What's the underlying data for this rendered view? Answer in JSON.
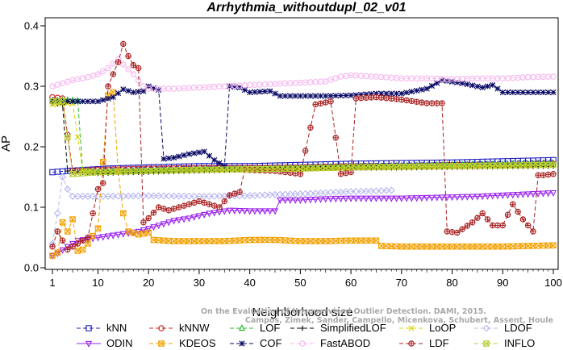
{
  "chart_data": {
    "type": "line",
    "title": "Arrhythmia_withoutdupl_02_v01",
    "xlabel": "Neighborhood size",
    "ylabel": "AP",
    "xlim": [
      1,
      100
    ],
    "ylim": [
      0,
      0.4
    ],
    "xticks": [
      1,
      10,
      20,
      30,
      40,
      50,
      60,
      70,
      80,
      90,
      100
    ],
    "yticks": [
      0.0,
      0.1,
      0.2,
      0.3,
      0.4
    ],
    "grid": false,
    "legend_position": "bottom",
    "watermark_lines": [
      "Campos, Zimek, Sander, Campello, Micenkova, Schubert, Assent, Houle",
      "On the Evaluation of Unsupervised Outlier Detection. DAMI, 2015."
    ],
    "series": [
      {
        "name": "kNN",
        "color": "#1f1fbf",
        "marker": "square",
        "dash": "5,3",
        "points": [
          [
            1,
            0.158
          ],
          [
            4,
            0.16
          ],
          [
            8,
            0.162
          ],
          [
            12,
            0.164
          ],
          [
            20,
            0.166
          ],
          [
            30,
            0.168
          ],
          [
            40,
            0.168
          ],
          [
            50,
            0.17
          ],
          [
            60,
            0.172
          ],
          [
            70,
            0.173
          ],
          [
            80,
            0.174
          ],
          [
            90,
            0.176
          ],
          [
            100,
            0.178
          ]
        ]
      },
      {
        "name": "kNNW",
        "color": "#cc2020",
        "marker": "circle",
        "dash": "5,3",
        "points": [
          [
            1,
            0.282
          ],
          [
            3,
            0.28
          ],
          [
            5,
            0.16
          ],
          [
            10,
            0.162
          ],
          [
            20,
            0.164
          ],
          [
            30,
            0.165
          ],
          [
            40,
            0.165
          ],
          [
            50,
            0.166
          ],
          [
            60,
            0.168
          ],
          [
            70,
            0.168
          ],
          [
            80,
            0.17
          ],
          [
            90,
            0.17
          ],
          [
            100,
            0.172
          ]
        ]
      },
      {
        "name": "LOF",
        "color": "#22bb22",
        "marker": "triangle-up",
        "dash": "5,3",
        "points": [
          [
            1,
            0.276
          ],
          [
            4,
            0.277
          ],
          [
            6,
            0.276
          ],
          [
            7,
            0.16
          ],
          [
            10,
            0.158
          ],
          [
            20,
            0.16
          ],
          [
            30,
            0.162
          ],
          [
            40,
            0.163
          ],
          [
            50,
            0.165
          ],
          [
            60,
            0.167
          ],
          [
            70,
            0.168
          ],
          [
            80,
            0.17
          ],
          [
            90,
            0.171
          ],
          [
            100,
            0.172
          ]
        ]
      },
      {
        "name": "SimplifiedLOF",
        "color": "#000000",
        "marker": "plus",
        "dash": "5,3",
        "points": [
          [
            1,
            0.272
          ],
          [
            3,
            0.27
          ],
          [
            4,
            0.16
          ],
          [
            10,
            0.156
          ],
          [
            20,
            0.158
          ],
          [
            30,
            0.16
          ],
          [
            40,
            0.162
          ],
          [
            50,
            0.164
          ],
          [
            60,
            0.165
          ],
          [
            70,
            0.165
          ],
          [
            80,
            0.166
          ],
          [
            90,
            0.167
          ],
          [
            100,
            0.168
          ]
        ]
      },
      {
        "name": "LoOP",
        "color": "#d4d400",
        "marker": "cross",
        "dash": "5,3",
        "points": [
          [
            1,
            0.27
          ],
          [
            5,
            0.272
          ],
          [
            7,
            0.16
          ],
          [
            10,
            0.158
          ],
          [
            20,
            0.16
          ],
          [
            30,
            0.161
          ],
          [
            40,
            0.162
          ],
          [
            50,
            0.163
          ],
          [
            60,
            0.165
          ],
          [
            70,
            0.166
          ],
          [
            80,
            0.167
          ],
          [
            90,
            0.168
          ],
          [
            100,
            0.17
          ]
        ]
      },
      {
        "name": "LDOF",
        "color": "#b8b8ee",
        "marker": "diamond",
        "dash": "5,3",
        "points": [
          [
            1,
            0.04
          ],
          [
            2,
            0.09
          ],
          [
            3,
            0.15
          ],
          [
            4,
            0.13
          ],
          [
            5,
            0.118
          ],
          [
            10,
            0.118
          ],
          [
            20,
            0.119
          ],
          [
            30,
            0.118
          ],
          [
            40,
            0.119
          ],
          [
            45,
            0.121
          ],
          [
            50,
            0.122
          ],
          [
            55,
            0.124
          ],
          [
            60,
            0.126
          ],
          [
            65,
            0.127
          ],
          [
            68,
            0.128
          ]
        ]
      },
      {
        "name": "ODIN",
        "color": "#9a22ee",
        "marker": "triangle-down",
        "dash": "",
        "points": [
          [
            1,
            0.02
          ],
          [
            2,
            0.024
          ],
          [
            4,
            0.035
          ],
          [
            6,
            0.045
          ],
          [
            10,
            0.05
          ],
          [
            14,
            0.055
          ],
          [
            18,
            0.06
          ],
          [
            20,
            0.065
          ],
          [
            25,
            0.078
          ],
          [
            28,
            0.082
          ],
          [
            32,
            0.09
          ],
          [
            36,
            0.095
          ],
          [
            40,
            0.094
          ],
          [
            45,
            0.094
          ],
          [
            46,
            0.112
          ],
          [
            50,
            0.112
          ],
          [
            55,
            0.114
          ],
          [
            60,
            0.115
          ],
          [
            65,
            0.115
          ],
          [
            70,
            0.115
          ],
          [
            75,
            0.116
          ],
          [
            80,
            0.117
          ],
          [
            85,
            0.118
          ],
          [
            90,
            0.12
          ],
          [
            95,
            0.122
          ],
          [
            100,
            0.124
          ]
        ]
      },
      {
        "name": "KDEOS",
        "color": "#f2a000",
        "marker": "square-x",
        "dash": "5,3",
        "points": [
          [
            1,
            0.02
          ],
          [
            2,
            0.025
          ],
          [
            3,
            0.075
          ],
          [
            4,
            0.06
          ],
          [
            5,
            0.08
          ],
          [
            6,
            0.028
          ],
          [
            7,
            0.03
          ],
          [
            8,
            0.04
          ],
          [
            10,
            0.065
          ],
          [
            12,
            0.285
          ],
          [
            13,
            0.29
          ],
          [
            14,
            0.16
          ],
          [
            15,
            0.09
          ],
          [
            16,
            0.06
          ],
          [
            18,
            0.055
          ],
          [
            20,
            0.058
          ],
          [
            21,
            0.046
          ],
          [
            25,
            0.044
          ],
          [
            30,
            0.044
          ],
          [
            35,
            0.044
          ],
          [
            40,
            0.046
          ],
          [
            45,
            0.046
          ],
          [
            50,
            0.044
          ],
          [
            55,
            0.044
          ],
          [
            60,
            0.045
          ],
          [
            65,
            0.045
          ],
          [
            66,
            0.036
          ],
          [
            70,
            0.035
          ],
          [
            75,
            0.035
          ],
          [
            80,
            0.035
          ],
          [
            85,
            0.035
          ],
          [
            90,
            0.035
          ],
          [
            95,
            0.036
          ],
          [
            100,
            0.037
          ]
        ]
      },
      {
        "name": "COF",
        "color": "#0a0a66",
        "marker": "star",
        "dash": "5,3",
        "points": [
          [
            1,
            0.276
          ],
          [
            5,
            0.275
          ],
          [
            10,
            0.275
          ],
          [
            13,
            0.282
          ],
          [
            15,
            0.295
          ],
          [
            17,
            0.29
          ],
          [
            19,
            0.292
          ],
          [
            20,
            0.3
          ],
          [
            22,
            0.294
          ],
          [
            23,
            0.18
          ],
          [
            25,
            0.182
          ],
          [
            28,
            0.188
          ],
          [
            31,
            0.192
          ],
          [
            33,
            0.178
          ],
          [
            35,
            0.168
          ],
          [
            36,
            0.3
          ],
          [
            38,
            0.298
          ],
          [
            40,
            0.29
          ],
          [
            44,
            0.292
          ],
          [
            46,
            0.284
          ],
          [
            50,
            0.284
          ],
          [
            55,
            0.284
          ],
          [
            60,
            0.285
          ],
          [
            65,
            0.288
          ],
          [
            70,
            0.288
          ],
          [
            75,
            0.296
          ],
          [
            78,
            0.31
          ],
          [
            82,
            0.305
          ],
          [
            86,
            0.298
          ],
          [
            88,
            0.302
          ],
          [
            90,
            0.29
          ],
          [
            95,
            0.29
          ],
          [
            100,
            0.29
          ]
        ]
      },
      {
        "name": "FastABOD",
        "color": "#f7b5f0",
        "marker": "circle",
        "dash": "5,3",
        "points": [
          [
            1,
            0.3
          ],
          [
            3,
            0.305
          ],
          [
            5,
            0.31
          ],
          [
            8,
            0.315
          ],
          [
            10,
            0.32
          ],
          [
            12,
            0.33
          ],
          [
            14,
            0.345
          ],
          [
            15,
            0.336
          ],
          [
            17,
            0.32
          ],
          [
            19,
            0.3
          ],
          [
            20,
            0.296
          ],
          [
            25,
            0.296
          ],
          [
            30,
            0.298
          ],
          [
            35,
            0.3
          ],
          [
            40,
            0.302
          ],
          [
            50,
            0.306
          ],
          [
            55,
            0.308
          ],
          [
            58,
            0.316
          ],
          [
            60,
            0.318
          ],
          [
            65,
            0.316
          ],
          [
            70,
            0.313
          ],
          [
            75,
            0.313
          ],
          [
            80,
            0.312
          ],
          [
            85,
            0.313
          ],
          [
            90,
            0.313
          ],
          [
            95,
            0.315
          ],
          [
            100,
            0.316
          ]
        ]
      },
      {
        "name": "LDF",
        "color": "#aa2222",
        "marker": "circle-plus",
        "dash": "5,3",
        "points": [
          [
            1,
            0.035
          ],
          [
            2,
            0.06
          ],
          [
            4,
            0.03
          ],
          [
            6,
            0.04
          ],
          [
            8,
            0.05
          ],
          [
            10,
            0.13
          ],
          [
            11,
            0.14
          ],
          [
            12,
            0.3
          ],
          [
            14,
            0.34
          ],
          [
            15,
            0.37
          ],
          [
            16,
            0.35
          ],
          [
            17,
            0.335
          ],
          [
            18,
            0.33
          ],
          [
            19,
            0.075
          ],
          [
            20,
            0.082
          ],
          [
            22,
            0.1
          ],
          [
            24,
            0.095
          ],
          [
            26,
            0.1
          ],
          [
            30,
            0.11
          ],
          [
            34,
            0.1
          ],
          [
            36,
            0.12
          ],
          [
            38,
            0.125
          ],
          [
            39,
            0.162
          ],
          [
            45,
            0.16
          ],
          [
            50,
            0.155
          ],
          [
            53,
            0.27
          ],
          [
            56,
            0.275
          ],
          [
            58,
            0.155
          ],
          [
            60,
            0.158
          ],
          [
            61,
            0.28
          ],
          [
            65,
            0.282
          ],
          [
            70,
            0.278
          ],
          [
            75,
            0.272
          ],
          [
            78,
            0.272
          ],
          [
            79,
            0.06
          ],
          [
            81,
            0.058
          ],
          [
            84,
            0.075
          ],
          [
            86,
            0.09
          ],
          [
            88,
            0.07
          ],
          [
            90,
            0.07
          ],
          [
            92,
            0.105
          ],
          [
            94,
            0.08
          ],
          [
            96,
            0.06
          ],
          [
            97,
            0.153
          ],
          [
            98,
            0.153
          ],
          [
            100,
            0.155
          ]
        ]
      },
      {
        "name": "INFLO",
        "color": "#b8cc30",
        "marker": "hourglass",
        "dash": "5,3",
        "points": [
          [
            1,
            0.275
          ],
          [
            3,
            0.276
          ],
          [
            5,
            0.155
          ],
          [
            10,
            0.158
          ],
          [
            20,
            0.16
          ],
          [
            30,
            0.162
          ],
          [
            40,
            0.163
          ],
          [
            50,
            0.164
          ],
          [
            60,
            0.166
          ],
          [
            70,
            0.167
          ],
          [
            80,
            0.168
          ],
          [
            90,
            0.169
          ],
          [
            100,
            0.17
          ]
        ]
      }
    ]
  }
}
